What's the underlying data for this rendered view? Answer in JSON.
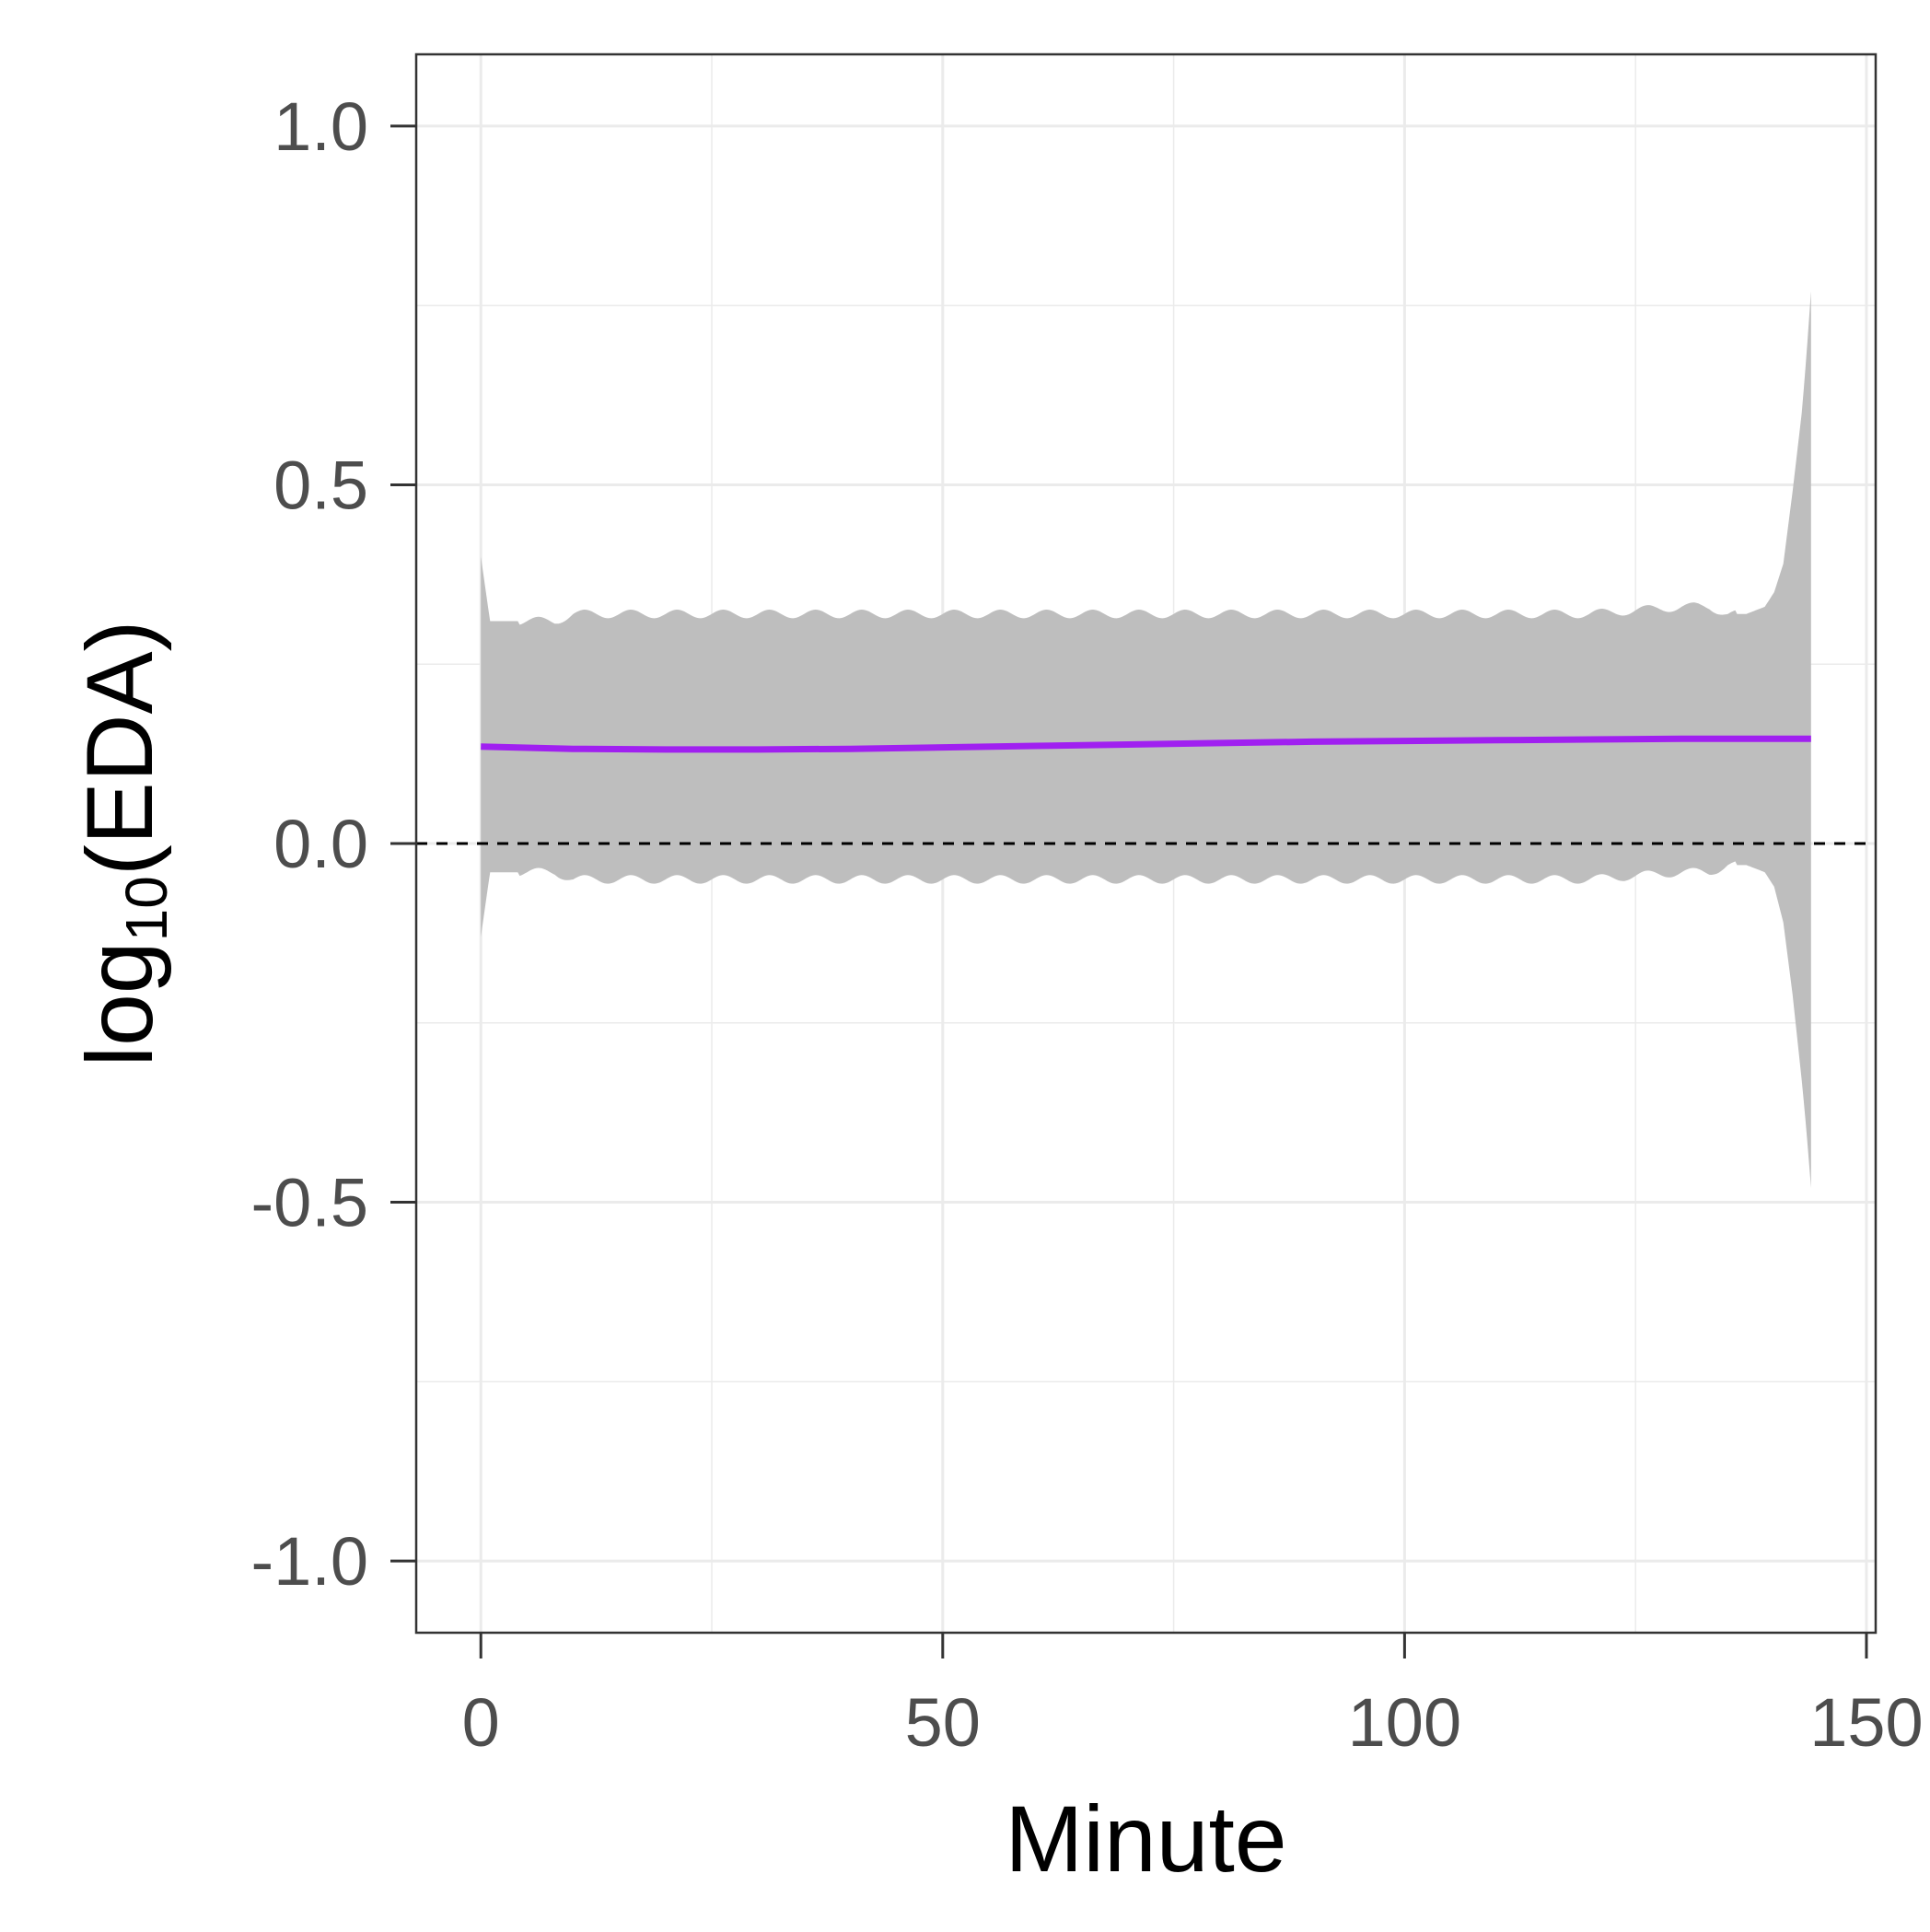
{
  "chart_data": {
    "type": "line",
    "xlabel": "Minute",
    "ylabel": {
      "prefix": "log",
      "subscript": "10",
      "suffix": "(EDA)"
    },
    "xlim": [
      -7,
      151
    ],
    "ylim": [
      -1.1,
      1.1
    ],
    "x_ticks": [
      0,
      50,
      100,
      150
    ],
    "x_tick_labels": [
      "0",
      "50",
      "100",
      "150"
    ],
    "y_ticks": [
      1.0,
      0.5,
      0.0,
      -0.5,
      -1.0
    ],
    "y_tick_labels": [
      "1.0",
      "0.5",
      "0.0",
      "-0.5",
      "-1.0"
    ],
    "grid": true,
    "reference_line": {
      "y": 0.0,
      "style": "dashed"
    },
    "series": [
      {
        "x": [
          0,
          10,
          20,
          30,
          40,
          50,
          60,
          70,
          80,
          90,
          100,
          110,
          120,
          130,
          140,
          144
        ],
        "y": [
          0.135,
          0.132,
          0.131,
          0.131,
          0.132,
          0.134,
          0.136,
          0.138,
          0.14,
          0.142,
          0.143,
          0.144,
          0.145,
          0.146,
          0.146,
          0.146
        ]
      }
    ],
    "ribbon": {
      "x": [
        0,
        1,
        3,
        5,
        8,
        10,
        20,
        30,
        40,
        50,
        60,
        70,
        80,
        90,
        100,
        110,
        120,
        130,
        133,
        135,
        137,
        139,
        140,
        141,
        142,
        143,
        143.5,
        144
      ],
      "upper": [
        0.4,
        0.31,
        0.31,
        0.31,
        0.31,
        0.32,
        0.32,
        0.32,
        0.32,
        0.32,
        0.32,
        0.32,
        0.32,
        0.32,
        0.32,
        0.32,
        0.32,
        0.33,
        0.33,
        0.32,
        0.32,
        0.33,
        0.35,
        0.39,
        0.49,
        0.6,
        0.68,
        0.77
      ],
      "lower": [
        -0.13,
        -0.04,
        -0.04,
        -0.04,
        -0.04,
        -0.05,
        -0.05,
        -0.05,
        -0.05,
        -0.05,
        -0.05,
        -0.05,
        -0.05,
        -0.05,
        -0.05,
        -0.05,
        -0.05,
        -0.04,
        -0.04,
        -0.03,
        -0.03,
        -0.04,
        -0.06,
        -0.11,
        -0.21,
        -0.33,
        -0.4,
        -0.48
      ]
    },
    "colors": {
      "line": "#a020f0",
      "ribbon": "#bebebe",
      "grid": "#ebebeb",
      "border": "#333333",
      "reference": "#000000"
    }
  }
}
